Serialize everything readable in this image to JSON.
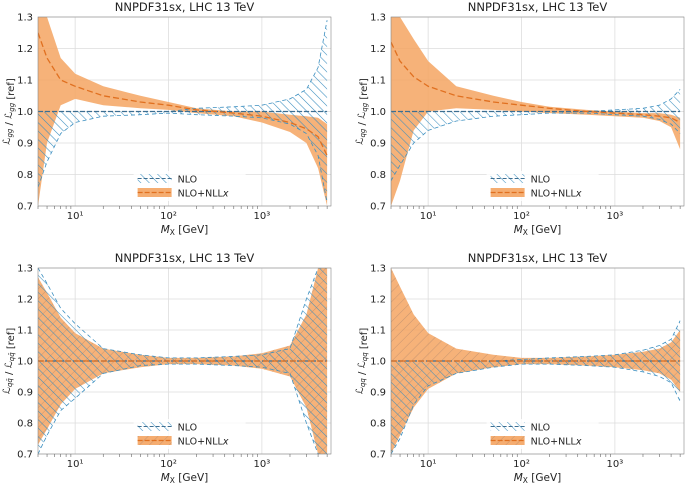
{
  "colors": {
    "nlo": "#3c8fc0",
    "nllx": "#f4a462",
    "nllx_line": "#e07020",
    "grid": "#dddddd",
    "ref_line": "#3c6e91"
  },
  "chart_data": [
    {
      "type": "area",
      "title": "NNPDF31sx, LHC 13 TeV",
      "xlabel": "M_X [GeV]",
      "ylabel": "L_gg / L_gg [ref]",
      "xscale": "log",
      "xlim": [
        4,
        5500
      ],
      "ylim": [
        0.7,
        1.3
      ],
      "xticks": [
        {
          "v": 10,
          "label": "10¹"
        },
        {
          "v": 100,
          "label": "10²"
        },
        {
          "v": 1000,
          "label": "10³"
        }
      ],
      "yticks": [
        "0.7",
        "0.8",
        "0.9",
        "1.0",
        "1.1",
        "1.2",
        "1.3"
      ],
      "legend_position": "bottom-center",
      "x": [
        4,
        5,
        7,
        10,
        20,
        50,
        100,
        200,
        500,
        1000,
        2000,
        3000,
        4000,
        5000
      ],
      "series": [
        {
          "name": "NLO",
          "style": "hatched",
          "center": [
            1.0,
            1.0,
            1.0,
            1.0,
            1.0,
            1.0,
            1.0,
            1.0,
            1.0,
            1.0,
            1.0,
            1.0,
            1.0,
            1.0
          ],
          "upper": [
            1.0,
            1.0,
            1.0,
            1.0,
            1.0,
            1.0,
            1.0,
            1.01,
            1.015,
            1.02,
            1.04,
            1.07,
            1.14,
            1.29
          ],
          "lower": [
            0.76,
            0.84,
            0.93,
            0.965,
            0.985,
            0.99,
            0.995,
            0.99,
            0.985,
            0.98,
            0.96,
            0.93,
            0.86,
            0.71
          ]
        },
        {
          "name": "NLO+NLLx",
          "style": "filled",
          "center": [
            1.25,
            1.17,
            1.1,
            1.08,
            1.05,
            1.03,
            1.02,
            1.005,
            0.995,
            0.985,
            0.965,
            0.945,
            0.92,
            0.86
          ],
          "upper": [
            1.3,
            1.3,
            1.17,
            1.12,
            1.08,
            1.05,
            1.03,
            1.01,
            1.0,
            1.0,
            0.99,
            0.985,
            0.98,
            0.96
          ],
          "lower": [
            0.7,
            0.9,
            1.02,
            1.04,
            1.02,
            1.01,
            1.005,
            0.995,
            0.985,
            0.965,
            0.935,
            0.9,
            0.82,
            0.7
          ]
        }
      ]
    },
    {
      "type": "area",
      "title": "NNPDF31sx, LHC 13 TeV",
      "xlabel": "M_X [GeV]",
      "ylabel": "L_qg / L_qg [ref]",
      "xscale": "log",
      "xlim": [
        4,
        5500
      ],
      "ylim": [
        0.7,
        1.3
      ],
      "xticks": [
        {
          "v": 10,
          "label": "10¹"
        },
        {
          "v": 100,
          "label": "10²"
        },
        {
          "v": 1000,
          "label": "10³"
        }
      ],
      "yticks": [
        "0.7",
        "0.8",
        "0.9",
        "1.0",
        "1.1",
        "1.2",
        "1.3"
      ],
      "legend_position": "bottom-center",
      "x": [
        4,
        5,
        7,
        10,
        20,
        50,
        100,
        200,
        500,
        1000,
        2000,
        3000,
        4000,
        5000
      ],
      "series": [
        {
          "name": "NLO",
          "style": "hatched",
          "center": [
            1.0,
            1.0,
            1.0,
            1.0,
            1.0,
            1.0,
            1.0,
            1.0,
            1.0,
            1.0,
            1.0,
            1.0,
            1.0,
            1.0
          ],
          "upper": [
            1.0,
            1.0,
            1.0,
            1.0,
            1.0,
            1.0,
            1.0,
            1.0,
            1.0,
            1.005,
            1.01,
            1.02,
            1.04,
            1.07
          ],
          "lower": [
            0.78,
            0.83,
            0.9,
            0.94,
            0.97,
            0.985,
            0.99,
            0.995,
            0.995,
            0.99,
            0.985,
            0.975,
            0.96,
            0.93
          ]
        },
        {
          "name": "NLO+NLLx",
          "style": "filled",
          "center": [
            1.22,
            1.16,
            1.11,
            1.08,
            1.05,
            1.03,
            1.02,
            1.01,
            1.0,
            0.995,
            0.99,
            0.985,
            0.98,
            0.965
          ],
          "upper": [
            1.3,
            1.3,
            1.23,
            1.16,
            1.08,
            1.05,
            1.03,
            1.015,
            1.005,
            1.0,
            0.995,
            0.995,
            0.99,
            0.98
          ],
          "lower": [
            0.7,
            0.78,
            0.94,
            1.0,
            1.01,
            1.005,
            1.0,
            0.995,
            0.99,
            0.985,
            0.98,
            0.97,
            0.95,
            0.88
          ]
        }
      ]
    },
    {
      "type": "area",
      "title": "NNPDF31sx, LHC 13 TeV",
      "xlabel": "M_X [GeV]",
      "ylabel": "L_qq̄ / L_qq̄ [ref]",
      "xscale": "log",
      "xlim": [
        4,
        5500
      ],
      "ylim": [
        0.7,
        1.3
      ],
      "xticks": [
        {
          "v": 10,
          "label": "10¹"
        },
        {
          "v": 100,
          "label": "10²"
        },
        {
          "v": 1000,
          "label": "10³"
        }
      ],
      "yticks": [
        "0.7",
        "0.8",
        "0.9",
        "1.0",
        "1.1",
        "1.2",
        "1.3"
      ],
      "legend_position": "bottom-center",
      "x": [
        4,
        5,
        7,
        10,
        20,
        50,
        100,
        200,
        500,
        1000,
        2000,
        3000,
        4000,
        5000
      ],
      "series": [
        {
          "name": "NLO",
          "style": "hatched",
          "center": [
            1.0,
            1.0,
            1.0,
            1.0,
            1.0,
            1.0,
            1.0,
            1.0,
            1.0,
            1.0,
            1.0,
            1.0,
            1.0,
            1.0
          ],
          "upper": [
            1.3,
            1.25,
            1.17,
            1.12,
            1.04,
            1.02,
            1.01,
            1.01,
            1.015,
            1.02,
            1.04,
            1.2,
            1.3,
            1.3
          ],
          "lower": [
            0.7,
            0.76,
            0.84,
            0.88,
            0.96,
            0.985,
            0.99,
            0.99,
            0.985,
            0.98,
            0.96,
            0.8,
            0.7,
            0.7
          ]
        },
        {
          "name": "NLO+NLLx",
          "style": "filled",
          "center": [
            1.0,
            1.0,
            1.0,
            1.0,
            1.0,
            1.0,
            1.0,
            1.0,
            1.0,
            1.0,
            1.0,
            1.0,
            1.0,
            1.0
          ],
          "upper": [
            1.27,
            1.22,
            1.14,
            1.09,
            1.04,
            1.02,
            1.01,
            1.01,
            1.015,
            1.025,
            1.05,
            1.15,
            1.3,
            1.3
          ],
          "lower": [
            0.73,
            0.78,
            0.86,
            0.91,
            0.96,
            0.98,
            0.99,
            0.99,
            0.985,
            0.975,
            0.95,
            0.85,
            0.7,
            0.7
          ]
        }
      ]
    },
    {
      "type": "area",
      "title": "NNPDF31sx, LHC 13 TeV",
      "xlabel": "M_X [GeV]",
      "ylabel": "L_qq / L_qq [ref]",
      "xscale": "log",
      "xlim": [
        4,
        5500
      ],
      "ylim": [
        0.7,
        1.3
      ],
      "xticks": [
        {
          "v": 10,
          "label": "10¹"
        },
        {
          "v": 100,
          "label": "10²"
        },
        {
          "v": 1000,
          "label": "10³"
        }
      ],
      "yticks": [
        "0.7",
        "0.8",
        "0.9",
        "1.0",
        "1.1",
        "1.2",
        "1.3"
      ],
      "legend_position": "bottom-center",
      "x": [
        4,
        5,
        7,
        10,
        20,
        50,
        100,
        200,
        500,
        1000,
        2000,
        3000,
        4000,
        5000
      ],
      "series": [
        {
          "name": "NLO",
          "style": "hatched",
          "center": [
            1.0,
            1.0,
            1.0,
            1.0,
            1.0,
            1.0,
            1.0,
            1.0,
            1.0,
            1.0,
            1.0,
            1.0,
            1.0,
            1.0
          ],
          "upper": [
            1.0,
            1.0,
            1.0,
            1.0,
            1.0,
            1.0,
            1.005,
            1.01,
            1.015,
            1.02,
            1.035,
            1.05,
            1.07,
            1.13
          ],
          "lower": [
            0.7,
            0.75,
            0.86,
            0.92,
            0.96,
            0.98,
            0.99,
            0.99,
            0.985,
            0.98,
            0.965,
            0.95,
            0.93,
            0.87
          ]
        },
        {
          "name": "NLO+NLLx",
          "style": "filled",
          "center": [
            1.0,
            1.0,
            1.0,
            1.0,
            1.0,
            1.0,
            1.0,
            1.0,
            1.0,
            1.0,
            1.0,
            1.0,
            1.0,
            1.0
          ],
          "upper": [
            1.3,
            1.24,
            1.15,
            1.09,
            1.04,
            1.02,
            1.01,
            1.01,
            1.015,
            1.02,
            1.03,
            1.04,
            1.06,
            1.1
          ],
          "lower": [
            0.7,
            0.76,
            0.85,
            0.91,
            0.96,
            0.98,
            0.99,
            0.99,
            0.985,
            0.98,
            0.97,
            0.96,
            0.94,
            0.9
          ]
        }
      ]
    }
  ]
}
